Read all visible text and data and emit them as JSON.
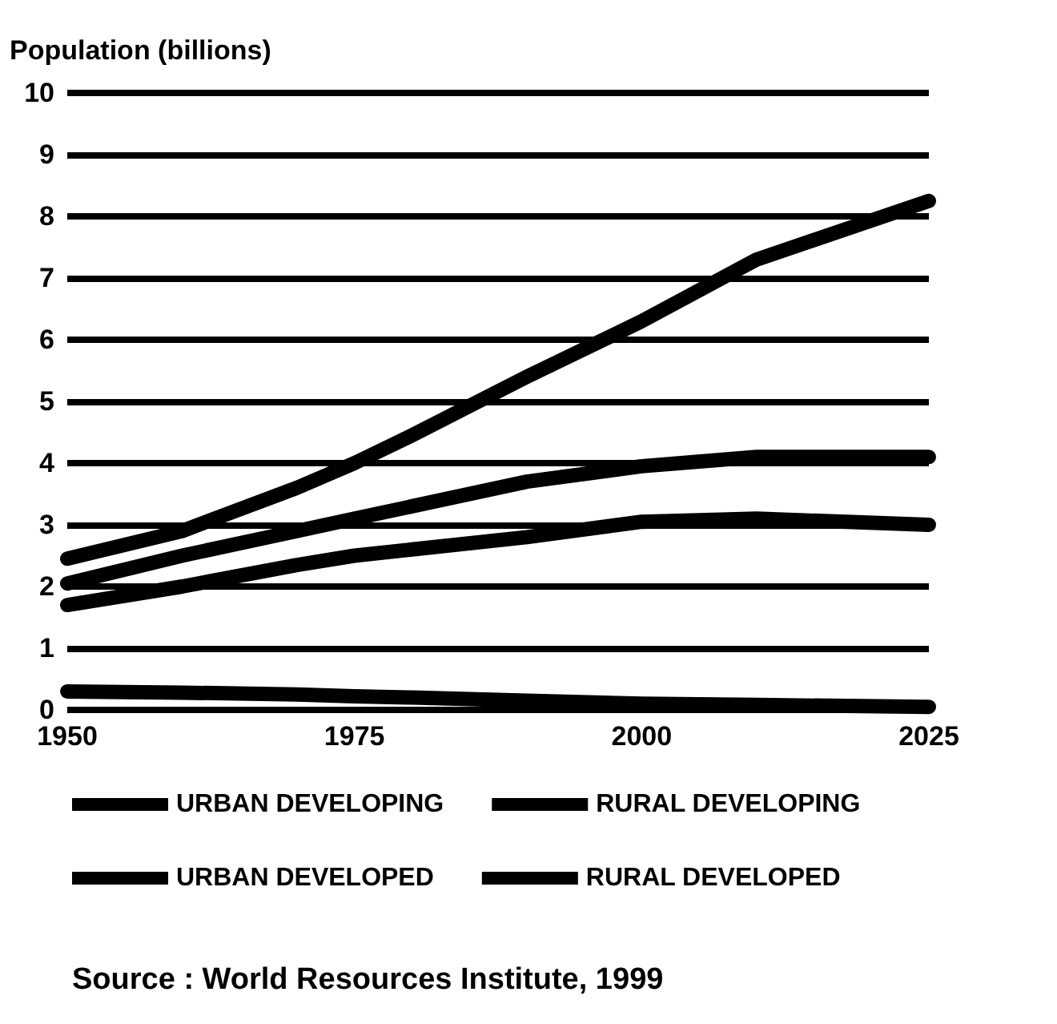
{
  "chart_data": {
    "type": "line",
    "ylabel": "Population (billions)",
    "x": [
      1950,
      1960,
      1970,
      1975,
      1980,
      1990,
      2000,
      2010,
      2025
    ],
    "series": [
      {
        "name": "URBAN DEVELOPING",
        "color": "#000000",
        "values": [
          2.45,
          2.9,
          3.6,
          4.0,
          4.45,
          5.4,
          6.3,
          7.3,
          8.25
        ]
      },
      {
        "name": "RURAL DEVELOPING",
        "color": "#000000",
        "values": [
          2.05,
          2.5,
          2.9,
          3.1,
          3.3,
          3.7,
          3.95,
          4.1,
          4.1
        ]
      },
      {
        "name": "URBAN DEVELOPED",
        "color": "#000000",
        "values": [
          1.7,
          2.0,
          2.35,
          2.5,
          2.6,
          2.8,
          3.05,
          3.1,
          3.0
        ]
      },
      {
        "name": "RURAL DEVELOPED",
        "color": "#000000",
        "values": [
          0.3,
          0.28,
          0.25,
          0.22,
          0.2,
          0.15,
          0.1,
          0.08,
          0.05
        ]
      }
    ],
    "xlim": [
      1950,
      2025
    ],
    "xticks": [
      1950,
      1975,
      2000,
      2025
    ],
    "ylim": [
      0,
      10
    ],
    "yticks": [
      0,
      1,
      2,
      3,
      4,
      5,
      6,
      7,
      8,
      9,
      10
    ],
    "grid": "y",
    "legend": "bottom",
    "marker": "none",
    "line_style": "solid",
    "annotations": [
      "Source : World Resources Institute, 1999"
    ]
  }
}
